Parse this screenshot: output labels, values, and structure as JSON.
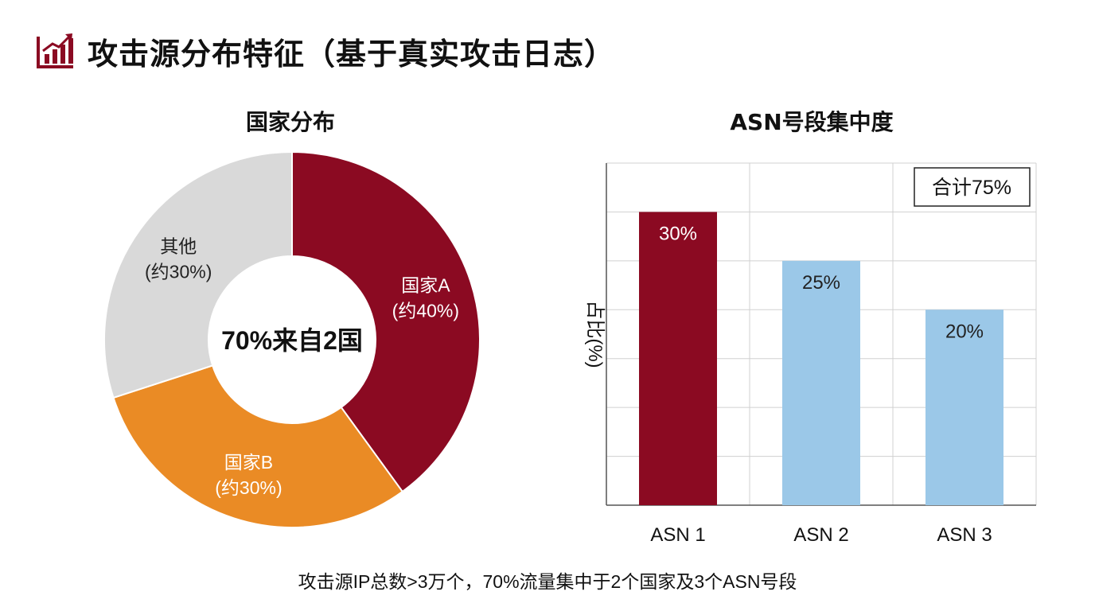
{
  "page": {
    "title": "攻击源分布特征（基于真实攻击日志）",
    "footer": "攻击源IP总数>3万个，70%流量集中于2个国家及3个ASN号段",
    "accent_color": "#8B0A22",
    "header_icon": "bar-chart-up-icon"
  },
  "chart_data": [
    {
      "type": "pie",
      "variant": "donut",
      "title": "国家分布",
      "center_label": "70%来自2国",
      "slices": [
        {
          "name": "国家A",
          "label": "(约40%)",
          "value": 40,
          "color": "#8B0A22",
          "label_color": "#ffffff"
        },
        {
          "name": "国家B",
          "label": "(约30%)",
          "value": 30,
          "color": "#EA8B25",
          "label_color": "#ffffff"
        },
        {
          "name": "其他",
          "label": "(约30%)",
          "value": 30,
          "color": "#D9D9D9",
          "label_color": "#222222"
        }
      ],
      "start_angle_deg": 0,
      "direction": "clockwise"
    },
    {
      "type": "bar",
      "title": "ASN号段集中度",
      "categories": [
        "ASN 1",
        "ASN 2",
        "ASN 3"
      ],
      "values": [
        30,
        25,
        20
      ],
      "data_labels": [
        "30%",
        "25%",
        "20%"
      ],
      "colors": [
        "#8B0A22",
        "#9BC8E8",
        "#9BC8E8"
      ],
      "label_colors": [
        "#ffffff",
        "#222222",
        "#222222"
      ],
      "ylabel": "占比(%)",
      "ylim": [
        0,
        35
      ],
      "ytick_step": 5,
      "grid": true,
      "annotation": "合计75%",
      "annotation_position": "top-right"
    }
  ]
}
